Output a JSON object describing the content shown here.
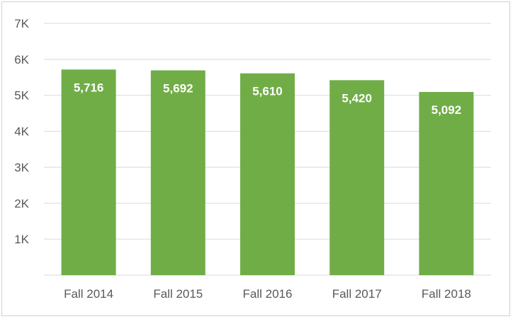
{
  "chart_data": {
    "type": "bar",
    "categories": [
      "Fall 2014",
      "Fall 2015",
      "Fall 2016",
      "Fall 2017",
      "Fall 2018"
    ],
    "values": [
      5716,
      5692,
      5610,
      5420,
      5092
    ],
    "data_labels": [
      "5,716",
      "5,692",
      "5,610",
      "5,420",
      "5,092"
    ],
    "y_ticks": [
      1000,
      2000,
      3000,
      4000,
      5000,
      6000,
      7000
    ],
    "y_tick_labels": [
      "1K",
      "2K",
      "3K",
      "4K",
      "5K",
      "6K",
      "7K"
    ],
    "ylim": [
      0,
      7000
    ],
    "grid": true,
    "bar_color": "#70ad47",
    "grid_color": "#d9d9d9",
    "label_color": "#ffffff",
    "title": "",
    "xlabel": "",
    "ylabel": ""
  }
}
